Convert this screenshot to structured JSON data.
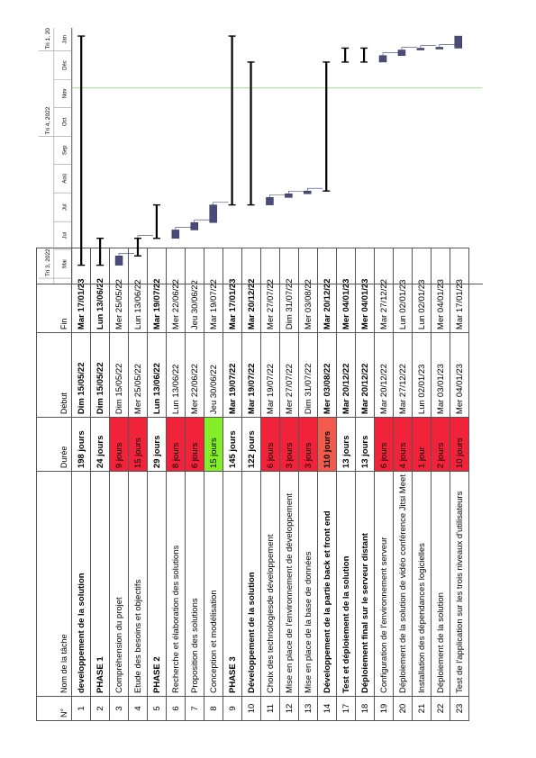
{
  "headers": {
    "num": "N°",
    "name": "Nom de la tâche",
    "duration": "Durée",
    "start": "Début",
    "end": "Fin"
  },
  "timeline": {
    "quarters": [
      "Tri 3, 2022",
      "Tri 4, 2022",
      "Tri 1, 2023"
    ],
    "months": [
      "Mai",
      "Jui",
      "Jul",
      "Aoû",
      "Sep",
      "Oct",
      "Nov",
      "Déc",
      "Jan"
    ]
  },
  "tasks": [
    {
      "id": "1",
      "name": "developpement de la solution",
      "duration": "198 jours",
      "start": "Dim 15/05/22",
      "end": "Mar 17/01/23",
      "level": 0,
      "bold": true,
      "color": ""
    },
    {
      "id": "2",
      "name": "PHASE 1",
      "duration": "24 jours",
      "start": "Dim 15/05/22",
      "end": "Lun 13/06/22",
      "level": 1,
      "bold": true,
      "color": ""
    },
    {
      "id": "3",
      "name": "Compréhension du projet",
      "duration": "9 jours",
      "start": "Dim 15/05/22",
      "end": "Mer 25/05/22",
      "level": 2,
      "bold": false,
      "color": "#f0233a"
    },
    {
      "id": "4",
      "name": "Etude des besoins et objectifs",
      "duration": "15 jours",
      "start": "Mer 25/05/22",
      "end": "Lun 13/06/22",
      "level": 1,
      "bold": false,
      "color": "#f0233a"
    },
    {
      "id": "5",
      "name": "PHASE 2",
      "duration": "29 jours",
      "start": "Lun 13/06/22",
      "end": "Mar 19/07/22",
      "level": 1,
      "bold": true,
      "color": ""
    },
    {
      "id": "6",
      "name": "Recherche et élaboration des solutions",
      "duration": "8 jours",
      "start": "Lun 13/06/22",
      "end": "Mer 22/06/22",
      "level": 2,
      "bold": false,
      "color": "#f0233a"
    },
    {
      "id": "7",
      "name": "Proposition des solutions",
      "duration": "6 jours",
      "start": "Mer 22/06/22",
      "end": "Jeu 30/06/22",
      "level": 2,
      "bold": false,
      "color": "#f0233a"
    },
    {
      "id": "8",
      "name": "Conception et modélisation",
      "duration": "15 jours",
      "start": "Jeu 30/06/22",
      "end": "Mar 19/07/22",
      "level": 2,
      "bold": false,
      "color": "#84ee2a"
    },
    {
      "id": "9",
      "name": "PHASE 3",
      "duration": "145 jours",
      "start": "Mar 19/07/22",
      "end": "Mar 17/01/23",
      "level": 1,
      "bold": true,
      "color": ""
    },
    {
      "id": "10",
      "name": "Développement de la solution",
      "duration": "122 jours",
      "start": "Mar 19/07/22",
      "end": "Mar 20/12/22",
      "level": 2,
      "bold": true,
      "color": ""
    },
    {
      "id": "11",
      "name": "Choix des technologiesde développement",
      "duration": "6 jours",
      "start": "Mar 19/07/22",
      "end": "Mer 27/07/22",
      "level": 3,
      "bold": false,
      "color": "#f0233a"
    },
    {
      "id": "12",
      "name": "Mise en place de l'environnement de développement",
      "duration": "3 jours",
      "start": "Mer 27/07/22",
      "end": "Dim 31/07/22",
      "level": 3,
      "bold": false,
      "color": "#f0233a"
    },
    {
      "id": "13",
      "name": "Mise en place de la base de données",
      "duration": "3 jours",
      "start": "Dim 31/07/22",
      "end": "Mer 03/08/22",
      "level": 3,
      "bold": false,
      "color": "#f0233a"
    },
    {
      "id": "14",
      "name": "Développement de la partie back et front end",
      "duration": "110 jours",
      "start": "Mer 03/08/22",
      "end": "Mar 20/12/22",
      "level": 3,
      "bold": true,
      "color": "#f25a4c"
    },
    {
      "id": "17",
      "name": "Test et déploiement de la solution",
      "duration": "13 jours",
      "start": "Mar 20/12/22",
      "end": "Mer 04/01/23",
      "level": 1,
      "bold": true,
      "color": ""
    },
    {
      "id": "18",
      "name": "Déploiement final sur le serveur distant",
      "duration": "13 jours",
      "start": "Mar 20/12/22",
      "end": "Mer 04/01/23",
      "level": 2,
      "bold": true,
      "color": ""
    },
    {
      "id": "19",
      "name": "Configuration de l'environnement serveur",
      "duration": "6 jours",
      "start": "Mar 20/12/22",
      "end": "Mar 27/12/22",
      "level": 3,
      "bold": false,
      "color": "#f0233a"
    },
    {
      "id": "20",
      "name": "Déploiement de la solution de vidéo conférence Jitsi Meet",
      "duration": "4 jours",
      "start": "Mar 27/12/22",
      "end": "Lun 02/01/23",
      "level": 3,
      "bold": false,
      "color": "#f0233a"
    },
    {
      "id": "21",
      "name": "Installation des dépendances logicielles",
      "duration": "1 jour",
      "start": "Lun 02/01/23",
      "end": "Lun 02/01/23",
      "level": 3,
      "bold": false,
      "color": "#f0233a"
    },
    {
      "id": "22",
      "name": "Déploiement de la solution",
      "duration": "2 jours",
      "start": "Mar 03/01/23",
      "end": "Mer 04/01/23",
      "level": 3,
      "bold": false,
      "color": "#f0233a"
    },
    {
      "id": "23",
      "name": "Test de l'application sur les trois niveaux d'utilisateurs",
      "duration": "10 jours",
      "start": "Mer 04/01/23",
      "end": "Mar 17/01/23",
      "level": 3,
      "bold": false,
      "color": "#f0233a"
    }
  ]
}
